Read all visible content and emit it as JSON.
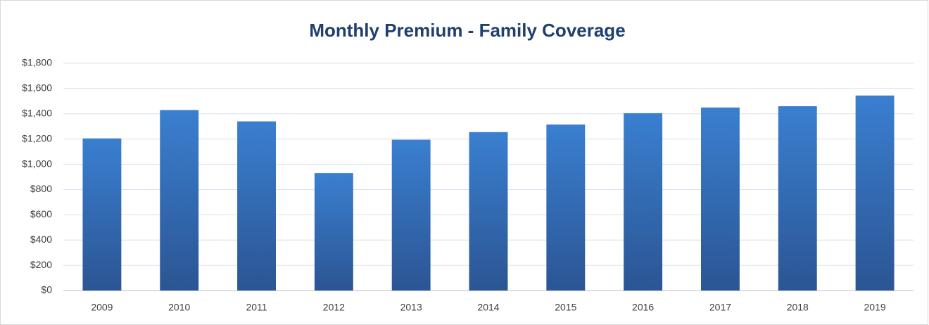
{
  "chart_data": {
    "type": "bar",
    "title": "Monthly Premium - Family Coverage",
    "categories": [
      "2009",
      "2010",
      "2011",
      "2012",
      "2013",
      "2014",
      "2015",
      "2016",
      "2017",
      "2018",
      "2019"
    ],
    "values": [
      1205,
      1430,
      1340,
      930,
      1195,
      1255,
      1315,
      1405,
      1450,
      1460,
      1545
    ],
    "color": "#3a7fd0",
    "ylim": [
      0,
      1800
    ],
    "yticks": [
      {
        "value": 0,
        "label": "$0"
      },
      {
        "value": 200,
        "label": "$200"
      },
      {
        "value": 400,
        "label": "$400"
      },
      {
        "value": 600,
        "label": "$600"
      },
      {
        "value": 800,
        "label": "$800"
      },
      {
        "value": 1000,
        "label": "$1,000"
      },
      {
        "value": 1200,
        "label": "$1,200"
      },
      {
        "value": 1400,
        "label": "$1,400"
      },
      {
        "value": 1600,
        "label": "$1,600"
      },
      {
        "value": 1800,
        "label": "$1,800"
      }
    ],
    "grid": true
  }
}
